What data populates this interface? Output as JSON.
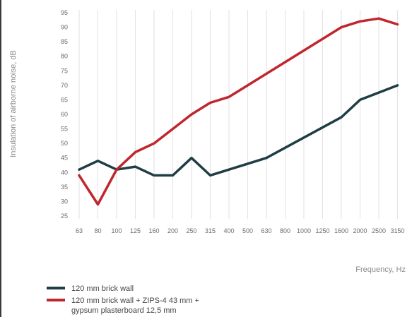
{
  "chart_data": {
    "type": "line",
    "ylabel": "Insulation of airborne noise, dB",
    "xlabel": "Frequency, Hz",
    "ylim": [
      25,
      95
    ],
    "yticks": [
      25,
      30,
      35,
      40,
      45,
      50,
      55,
      60,
      65,
      70,
      75,
      80,
      85,
      90,
      95
    ],
    "categories": [
      "63",
      "80",
      "100",
      "125",
      "160",
      "200",
      "250",
      "315",
      "400",
      "500",
      "630",
      "800",
      "1000",
      "1250",
      "1600",
      "2000",
      "2500",
      "3150"
    ],
    "grid": "vertical",
    "legend_position": "bottom-left",
    "series": [
      {
        "name": "120 mm brick wall",
        "color": "#1f3d44",
        "points": [
          [
            0,
            41
          ],
          [
            1,
            44
          ],
          [
            2,
            41
          ],
          [
            3,
            42
          ],
          [
            4,
            39
          ],
          [
            5,
            39
          ],
          [
            6,
            45
          ],
          [
            7,
            39
          ],
          [
            10,
            45
          ],
          [
            14,
            59
          ],
          [
            15,
            65
          ],
          [
            17,
            70
          ]
        ]
      },
      {
        "name": "120 mm brick wall + ZIPS-4 43 mm + gypsum plasterboard 12,5 mm",
        "name_lines": [
          "120 mm brick wall + ZIPS-4 43 mm +",
          "gypsum plasterboard 12,5 mm"
        ],
        "color": "#c0262d",
        "points": [
          [
            0,
            39
          ],
          [
            1,
            29
          ],
          [
            2,
            41
          ],
          [
            3,
            47
          ],
          [
            4,
            50
          ],
          [
            6,
            60
          ],
          [
            7,
            64
          ],
          [
            8,
            66
          ],
          [
            9,
            70
          ],
          [
            14,
            90
          ],
          [
            15,
            92
          ],
          [
            16,
            93
          ],
          [
            17,
            91
          ]
        ]
      }
    ]
  }
}
